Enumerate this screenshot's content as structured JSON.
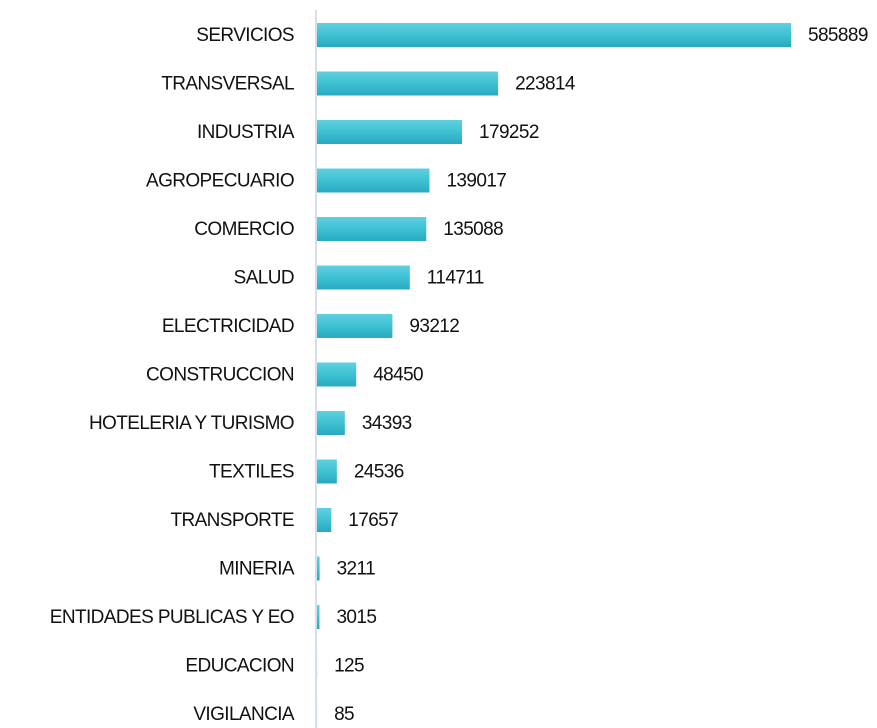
{
  "chart_data": {
    "type": "bar",
    "orientation": "horizontal",
    "categories": [
      "SERVICIOS",
      "TRANSVERSAL",
      "INDUSTRIA",
      "AGROPECUARIO",
      "COMERCIO",
      "SALUD",
      "ELECTRICIDAD",
      "CONSTRUCCION",
      "HOTELERIA Y TURISMO",
      "TEXTILES",
      "TRANSPORTE",
      "MINERIA",
      "ENTIDADES PUBLICAS Y EO",
      "EDUCACION",
      "VIGILANCIA"
    ],
    "values": [
      585889,
      223814,
      179252,
      139017,
      135088,
      114711,
      93212,
      48450,
      34393,
      24536,
      17657,
      3211,
      3015,
      125,
      85
    ],
    "color": "#3ec1d3"
  }
}
